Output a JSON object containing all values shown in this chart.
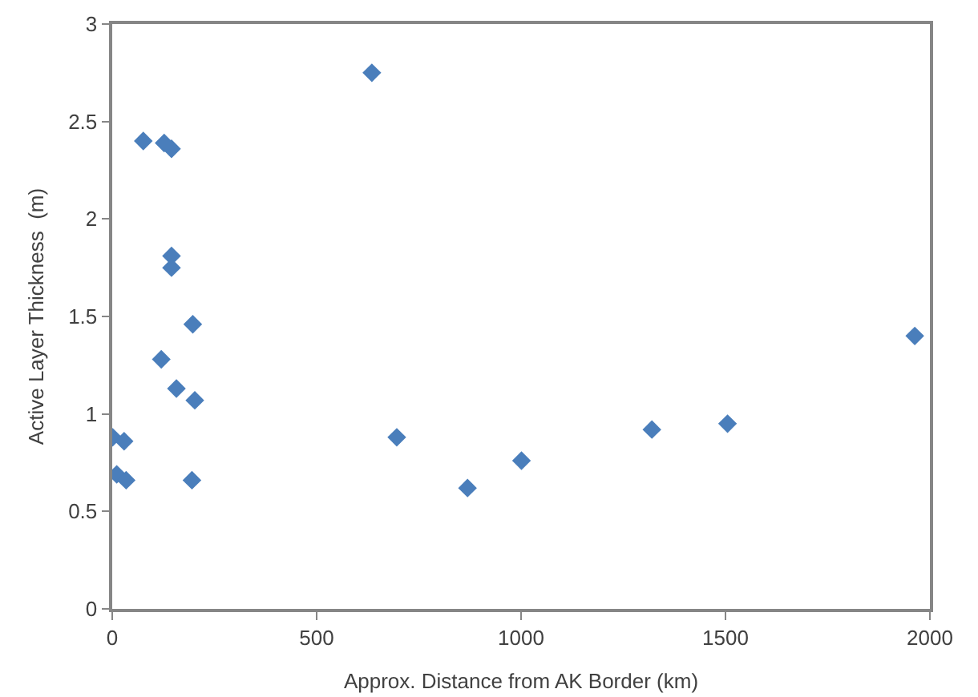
{
  "chart_data": {
    "type": "scatter",
    "xlabel": "Approx. Distance from AK Border (km)",
    "ylabel": "Active Layer Thickness  (m)",
    "marker": "diamond",
    "grid": false,
    "xlim": [
      0,
      2000
    ],
    "xticks": [
      0,
      500,
      1000,
      1500,
      2000
    ],
    "ylim": [
      0,
      3
    ],
    "yticks": [
      0,
      0.5,
      1,
      1.5,
      2,
      2.5,
      3
    ],
    "series": [
      {
        "color": "#4a7ebb",
        "x": [
          76,
          127,
          145,
          145,
          145,
          197,
          120,
          157,
          202,
          1,
          29,
          11,
          34,
          195,
          635,
          696,
          869,
          1001,
          1320,
          1505,
          1963
        ],
        "values": [
          2.4,
          2.39,
          2.36,
          1.81,
          1.75,
          1.46,
          1.28,
          1.13,
          1.07,
          0.88,
          0.86,
          0.69,
          0.66,
          0.66,
          2.75,
          0.88,
          0.62,
          0.76,
          0.92,
          0.95,
          1.4
        ]
      }
    ]
  }
}
